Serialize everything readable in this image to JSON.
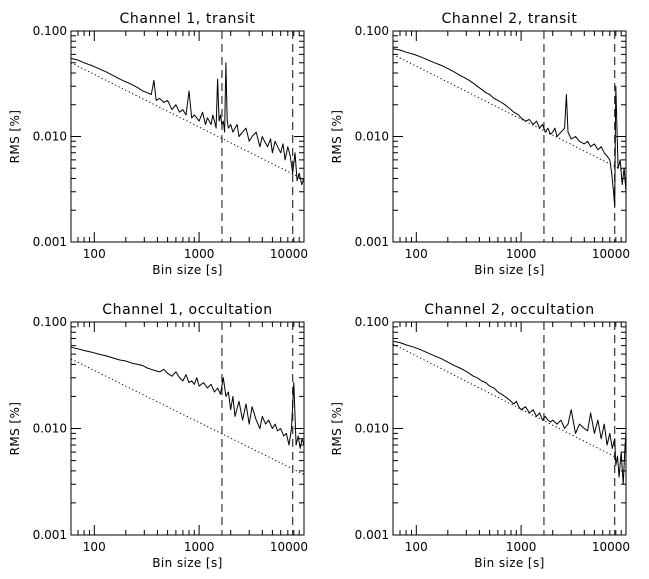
{
  "chart_data": [
    {
      "type": "line",
      "title": "Channel 1, transit",
      "xlabel": "Bin size [s]",
      "ylabel": "RMS [%]",
      "xscale": "log",
      "yscale": "log",
      "xlim": [
        60,
        10000
      ],
      "ylim": [
        0.001,
        0.1
      ],
      "xticks": [
        "100",
        "1000",
        "10000"
      ],
      "yticks": [
        "0.001",
        "0.010",
        "0.100"
      ],
      "vlines_x": [
        1650,
        7800
      ],
      "model": {
        "style": "dotted",
        "x": [
          60,
          10000
        ],
        "y": [
          0.05,
          0.0039
        ]
      },
      "series": [
        {
          "style": "solid",
          "x": [
            60,
            70,
            80,
            95,
            110,
            130,
            150,
            175,
            200,
            230,
            260,
            290,
            320,
            350,
            370,
            390,
            420,
            460,
            500,
            550,
            600,
            650,
            700,
            750,
            800,
            850,
            900,
            950,
            1000,
            1080,
            1150,
            1200,
            1250,
            1300,
            1350,
            1400,
            1450,
            1500,
            1550,
            1600,
            1650,
            1700,
            1750,
            1800,
            1850,
            1900,
            2000,
            2100,
            2200,
            2300,
            2400,
            2600,
            2800,
            3000,
            3200,
            3500,
            3800,
            4000,
            4200,
            4500,
            4800,
            5000,
            5300,
            5600,
            6000,
            6300,
            6600,
            7000,
            7400,
            7800,
            8200,
            8600,
            9000,
            9500,
            10000
          ],
          "y": [
            0.055,
            0.053,
            0.05,
            0.047,
            0.044,
            0.041,
            0.038,
            0.035,
            0.033,
            0.031,
            0.029,
            0.027,
            0.026,
            0.025,
            0.034,
            0.022,
            0.023,
            0.021,
            0.022,
            0.018,
            0.02,
            0.017,
            0.018,
            0.016,
            0.027,
            0.015,
            0.016,
            0.015,
            0.014,
            0.017,
            0.013,
            0.015,
            0.014,
            0.013,
            0.016,
            0.014,
            0.012,
            0.035,
            0.014,
            0.016,
            0.013,
            0.014,
            0.011,
            0.05,
            0.014,
            0.012,
            0.013,
            0.011,
            0.012,
            0.013,
            0.01,
            0.011,
            0.012,
            0.009,
            0.01,
            0.011,
            0.008,
            0.01,
            0.009,
            0.008,
            0.0095,
            0.007,
            0.009,
            0.008,
            0.007,
            0.0085,
            0.006,
            0.008,
            0.0065,
            0.0045,
            0.007,
            0.0038,
            0.0045,
            0.0035,
            0.004
          ]
        }
      ]
    },
    {
      "type": "line",
      "title": "Channel 2, transit",
      "xlabel": "Bin size [s]",
      "ylabel": "RMS [%]",
      "xscale": "log",
      "yscale": "log",
      "xlim": [
        60,
        10000
      ],
      "ylim": [
        0.001,
        0.1
      ],
      "xticks": [
        "100",
        "1000",
        "10000"
      ],
      "yticks": [
        "0.001",
        "0.010",
        "0.100"
      ],
      "vlines_x": [
        1650,
        7800
      ],
      "model": {
        "style": "dotted",
        "x": [
          60,
          10000
        ],
        "y": [
          0.06,
          0.0046
        ]
      },
      "series": [
        {
          "style": "solid",
          "x": [
            60,
            70,
            80,
            95,
            110,
            130,
            150,
            175,
            200,
            230,
            260,
            290,
            320,
            350,
            380,
            420,
            460,
            500,
            550,
            600,
            650,
            700,
            750,
            800,
            850,
            900,
            950,
            1000,
            1100,
            1200,
            1300,
            1400,
            1500,
            1600,
            1700,
            1800,
            1900,
            2000,
            2100,
            2200,
            2400,
            2600,
            2700,
            2800,
            3000,
            3300,
            3600,
            4000,
            4300,
            4600,
            5000,
            5400,
            5800,
            6200,
            6600,
            7000,
            7300,
            7600,
            7800,
            8000,
            8400,
            8800,
            9200,
            9600,
            10000
          ],
          "y": [
            0.068,
            0.066,
            0.063,
            0.06,
            0.057,
            0.053,
            0.05,
            0.047,
            0.044,
            0.041,
            0.038,
            0.036,
            0.034,
            0.032,
            0.03,
            0.028,
            0.026,
            0.025,
            0.023,
            0.022,
            0.021,
            0.02,
            0.019,
            0.018,
            0.017,
            0.0165,
            0.016,
            0.015,
            0.014,
            0.0145,
            0.013,
            0.014,
            0.012,
            0.013,
            0.011,
            0.012,
            0.0105,
            0.011,
            0.012,
            0.01,
            0.011,
            0.012,
            0.025,
            0.011,
            0.0095,
            0.01,
            0.009,
            0.0085,
            0.009,
            0.008,
            0.0085,
            0.0075,
            0.008,
            0.007,
            0.0065,
            0.006,
            0.0045,
            0.003,
            0.0022,
            0.03,
            0.005,
            0.006,
            0.0035,
            0.005,
            0.003
          ]
        }
      ]
    },
    {
      "type": "line",
      "title": "Channel 1, occultation",
      "xlabel": "Bin size [s]",
      "ylabel": "RMS [%]",
      "xscale": "log",
      "yscale": "log",
      "xlim": [
        60,
        10000
      ],
      "ylim": [
        0.001,
        0.1
      ],
      "xticks": [
        "100",
        "1000",
        "10000"
      ],
      "yticks": [
        "0.001",
        "0.010",
        "0.100"
      ],
      "vlines_x": [
        1650,
        7800
      ],
      "model": {
        "style": "dotted",
        "x": [
          60,
          10000
        ],
        "y": [
          0.045,
          0.0037
        ]
      },
      "series": [
        {
          "style": "solid",
          "x": [
            60,
            70,
            80,
            95,
            110,
            130,
            150,
            175,
            200,
            230,
            260,
            290,
            320,
            350,
            380,
            420,
            460,
            500,
            550,
            600,
            650,
            700,
            750,
            800,
            850,
            900,
            950,
            1000,
            1100,
            1200,
            1300,
            1400,
            1500,
            1600,
            1700,
            1800,
            1900,
            2000,
            2100,
            2200,
            2400,
            2600,
            2800,
            3000,
            3200,
            3500,
            3800,
            4000,
            4300,
            4600,
            5000,
            5300,
            5600,
            6000,
            6400,
            6800,
            7200,
            7600,
            8000,
            8400,
            8800,
            9200,
            9600,
            10000
          ],
          "y": [
            0.058,
            0.056,
            0.054,
            0.052,
            0.05,
            0.048,
            0.046,
            0.044,
            0.043,
            0.041,
            0.04,
            0.039,
            0.037,
            0.036,
            0.035,
            0.034,
            0.036,
            0.033,
            0.031,
            0.034,
            0.03,
            0.028,
            0.032,
            0.027,
            0.028,
            0.026,
            0.03,
            0.025,
            0.027,
            0.024,
            0.026,
            0.022,
            0.024,
            0.021,
            0.03,
            0.02,
            0.022,
            0.015,
            0.02,
            0.013,
            0.018,
            0.012,
            0.017,
            0.011,
            0.016,
            0.012,
            0.01,
            0.013,
            0.011,
            0.012,
            0.01,
            0.011,
            0.0095,
            0.01,
            0.0085,
            0.009,
            0.007,
            0.01,
            0.027,
            0.007,
            0.0085,
            0.0065,
            0.008,
            0.007
          ]
        }
      ]
    },
    {
      "type": "line",
      "title": "Channel 2, occultation",
      "xlabel": "Bin size [s]",
      "ylabel": "RMS [%]",
      "xscale": "log",
      "yscale": "log",
      "xlim": [
        60,
        10000
      ],
      "ylim": [
        0.001,
        0.1
      ],
      "xticks": [
        "100",
        "1000",
        "10000"
      ],
      "yticks": [
        "0.001",
        "0.010",
        "0.100"
      ],
      "vlines_x": [
        1650,
        7800
      ],
      "model": {
        "style": "dotted",
        "x": [
          60,
          10000
        ],
        "y": [
          0.062,
          0.0048
        ]
      },
      "series": [
        {
          "style": "solid",
          "x": [
            60,
            70,
            80,
            95,
            110,
            130,
            150,
            175,
            200,
            230,
            260,
            290,
            320,
            350,
            380,
            420,
            460,
            500,
            550,
            600,
            650,
            700,
            750,
            800,
            850,
            900,
            950,
            1000,
            1100,
            1200,
            1300,
            1400,
            1500,
            1600,
            1700,
            1800,
            1900,
            2000,
            2200,
            2400,
            2600,
            2800,
            3000,
            3300,
            3600,
            4000,
            4300,
            4600,
            5000,
            5400,
            5800,
            6200,
            6600,
            7000,
            7400,
            7800,
            8000,
            8300,
            8600,
            9000,
            9400,
            9800,
            10000
          ],
          "y": [
            0.066,
            0.064,
            0.061,
            0.058,
            0.055,
            0.051,
            0.048,
            0.045,
            0.042,
            0.039,
            0.037,
            0.035,
            0.033,
            0.031,
            0.03,
            0.028,
            0.027,
            0.025,
            0.024,
            0.022,
            0.021,
            0.02,
            0.019,
            0.018,
            0.017,
            0.018,
            0.016,
            0.015,
            0.016,
            0.014,
            0.015,
            0.013,
            0.014,
            0.012,
            0.013,
            0.012,
            0.0115,
            0.012,
            0.011,
            0.012,
            0.01,
            0.011,
            0.015,
            0.009,
            0.011,
            0.01,
            0.0095,
            0.014,
            0.009,
            0.012,
            0.008,
            0.011,
            0.007,
            0.009,
            0.0065,
            0.008,
            0.0045,
            0.0055,
            0.0035,
            0.006,
            0.003,
            0.007,
            0.009
          ]
        }
      ]
    }
  ]
}
